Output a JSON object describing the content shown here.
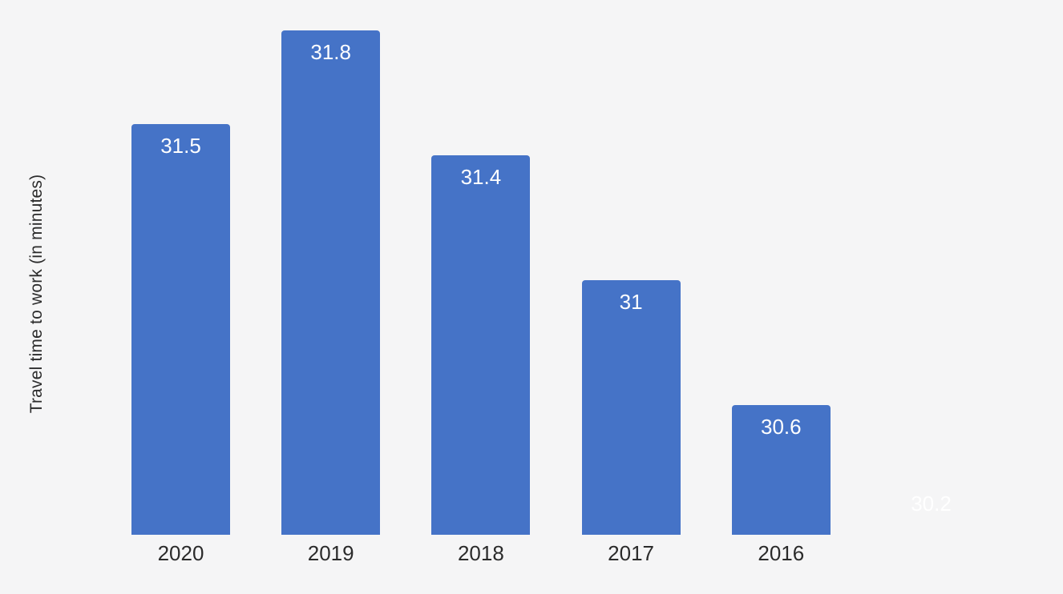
{
  "chart_data": {
    "type": "bar",
    "title": "",
    "xlabel": "",
    "ylabel": "Travel time to work (in minutes)",
    "categories": [
      "2020",
      "2019",
      "2018",
      "2017",
      "2016",
      ""
    ],
    "values": [
      31.5,
      31.8,
      31.4,
      31,
      30.6,
      30.2
    ],
    "data_labels": [
      "31.5",
      "31.8",
      "31.4",
      "31",
      "30.6",
      "30.2"
    ],
    "hidden_bars": [
      5
    ],
    "series_name": "Travel time to work",
    "ylim": [
      30.185,
      31.9
    ],
    "grid": false,
    "legend_position": "none",
    "colors": {
      "bar": "#4573c7",
      "data_label": "#ffffff",
      "axis_text": "#2b2b2b",
      "background": "#f5f5f6"
    }
  }
}
